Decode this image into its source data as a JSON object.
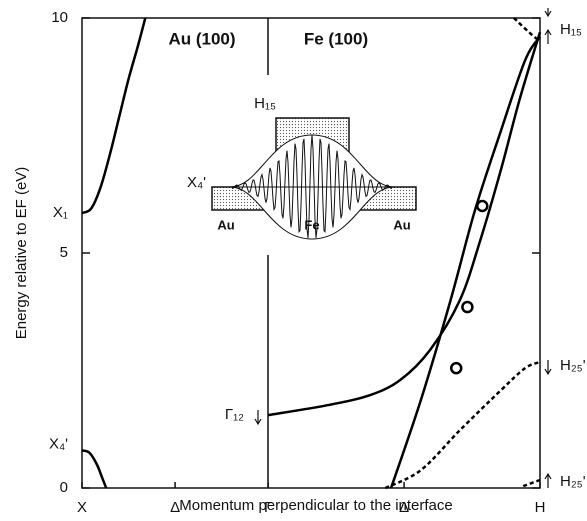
{
  "chart_data": {
    "type": "line",
    "xlabel": "Momentum perpendicular to the interface",
    "ylabel": "Energy relative to EF (eV)",
    "xlim": [
      0,
      2.46
    ],
    "ylim": [
      0,
      10
    ],
    "xticks": [
      {
        "value": 0,
        "label": "X"
      },
      {
        "value": 0.5,
        "label": "Δ"
      },
      {
        "value": 1,
        "label": "Γ"
      },
      {
        "value": 1.73,
        "label": "Δ"
      },
      {
        "value": 2.46,
        "label": "H"
      }
    ],
    "yticks": [
      0,
      5,
      10
    ],
    "series": [
      {
        "color": "#000000",
        "linestyle": "solid",
        "x": [
          0,
          0.05,
          0.1,
          0.15,
          0.2,
          0.25,
          0.3,
          0.34
        ],
        "values": [
          5.85,
          5.95,
          6.4,
          7.1,
          7.9,
          8.7,
          9.4,
          10
        ]
      },
      {
        "color": "#000000",
        "linestyle": "solid",
        "x": [
          0,
          0.04,
          0.08,
          0.11,
          0.13
        ],
        "values": [
          0.8,
          0.75,
          0.5,
          0.2,
          0
        ]
      },
      {
        "color": "#000000",
        "linestyle": "solid",
        "x": [
          1,
          1.33,
          1.55,
          1.71,
          1.87,
          2.03,
          2.14,
          2.25,
          2.35,
          2.46
        ],
        "values": [
          1.55,
          1.77,
          1.98,
          2.3,
          2.94,
          4.0,
          5.28,
          6.77,
          8.26,
          9.7
        ]
      },
      {
        "color": "#000000",
        "linestyle": "solid",
        "x": [
          1.66,
          1.82,
          1.98,
          2.11,
          2.25,
          2.38,
          2.46
        ],
        "values": [
          0,
          1.87,
          4.0,
          5.9,
          7.6,
          9.1,
          9.6
        ]
      },
      {
        "color": "#000000",
        "linestyle": "dashed",
        "x": [
          1.63,
          1.82,
          2.03,
          2.25,
          2.38,
          2.46
        ],
        "values": [
          0,
          0.38,
          1.23,
          2.08,
          2.55,
          2.68
        ]
      },
      {
        "color": "#000000",
        "linestyle": "dashed",
        "x": [
          2.37,
          2.46
        ],
        "values": [
          0.04,
          0.17
        ]
      },
      {
        "color": "#000000",
        "linestyle": "dashed",
        "x": [
          2.32,
          2.4,
          2.46
        ],
        "values": [
          10,
          9.7,
          9.5
        ]
      },
      {
        "color": "#000000",
        "linestyle": "circles",
        "x": [
          2.15,
          2.07,
          2.01
        ],
        "values": [
          6.0,
          3.85,
          2.55
        ]
      }
    ],
    "annotations": [
      "Au (100)",
      "Fe (100)",
      "X₁",
      "X₄'",
      "Γ₁₂",
      "H₁₅",
      "H₂₅'",
      "H₂₅'"
    ],
    "inset_labels": [
      "H₁₅",
      "X₄'",
      "Au",
      "Fe",
      "Au"
    ]
  }
}
